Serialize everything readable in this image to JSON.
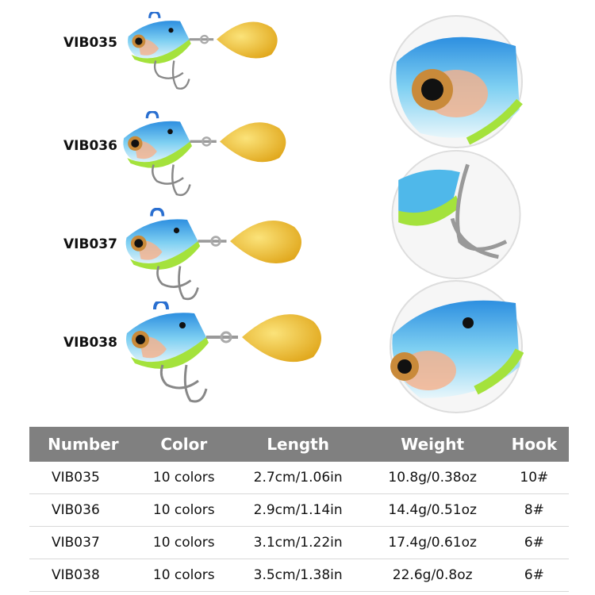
{
  "lures": [
    {
      "label": "VIB035"
    },
    {
      "label": "VIB036"
    },
    {
      "label": "VIB037"
    },
    {
      "label": "VIB038"
    }
  ],
  "detail_images": [
    "head-closeup",
    "hook-closeup",
    "body-closeup"
  ],
  "colors": {
    "body": "#4fb8ea",
    "belly": "#a4e23c",
    "blade": "#f0c53a",
    "header": "#808080"
  },
  "table": {
    "headers": [
      "Number",
      "Color",
      "Length",
      "Weight",
      "Hook"
    ],
    "rows": [
      [
        "VIB035",
        "10 colors",
        "2.7cm/1.06in",
        "10.8g/0.38oz",
        "10#"
      ],
      [
        "VIB036",
        "10 colors",
        "2.9cm/1.14in",
        "14.4g/0.51oz",
        "8#"
      ],
      [
        "VIB037",
        "10 colors",
        "3.1cm/1.22in",
        "17.4g/0.61oz",
        "6#"
      ],
      [
        "VIB038",
        "10 colors",
        "3.5cm/1.38in",
        "22.6g/0.8oz",
        "6#"
      ]
    ]
  }
}
